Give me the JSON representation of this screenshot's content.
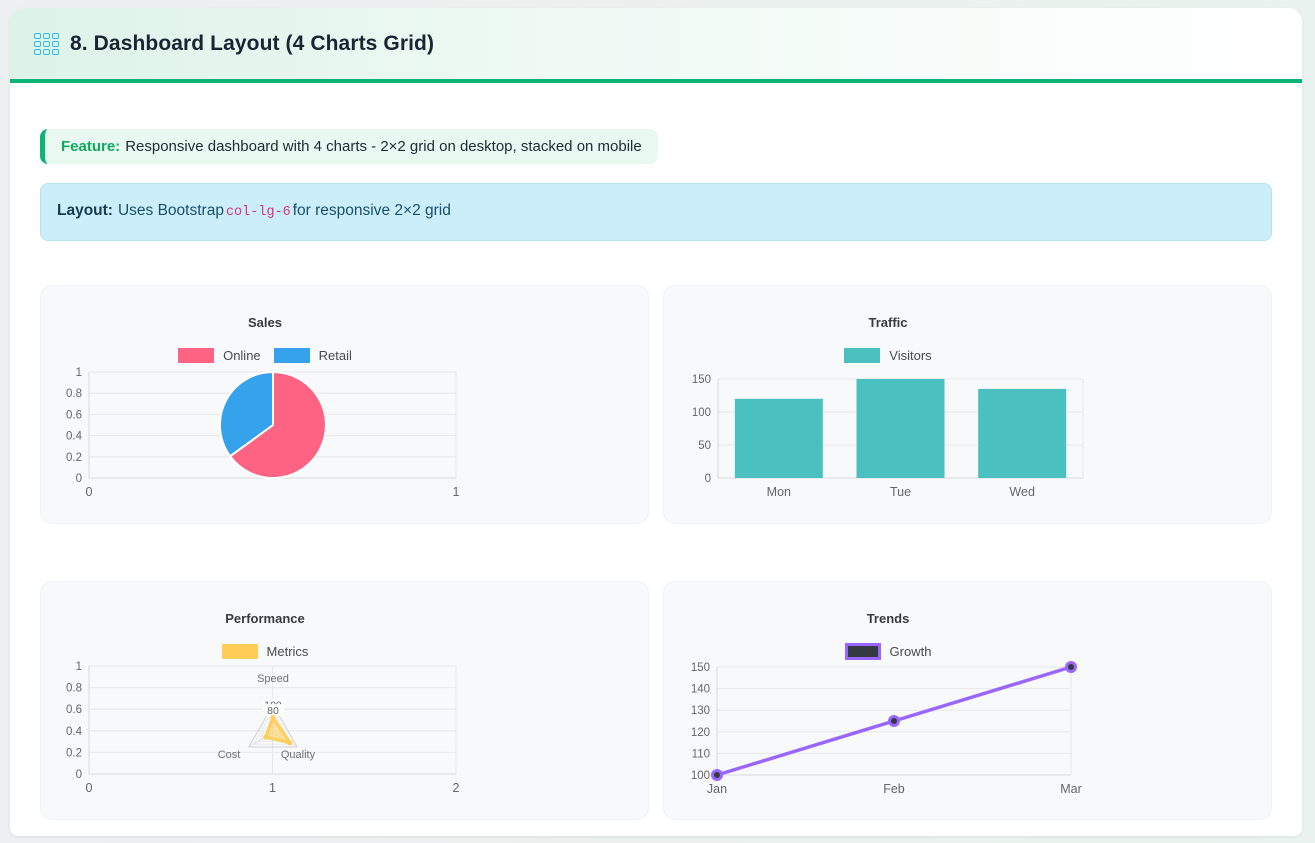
{
  "header": {
    "title": "8. Dashboard Layout (4 Charts Grid)",
    "icon": "dashboard-grid-icon"
  },
  "feature": {
    "label": "Feature:",
    "text": "Responsive dashboard with 4 charts - 2×2 grid on desktop, stacked on mobile"
  },
  "layout_note": {
    "label": "Layout:",
    "text_before": "Uses Bootstrap",
    "code": "col-lg-6",
    "text_after": "for responsive 2×2 grid"
  },
  "colors": {
    "accent_green": "#0db478",
    "icon_cyan": "#2db8e8",
    "info_bg": "#cbeefa",
    "code_pink": "#d63384",
    "pie_pink": "#FF6384",
    "pie_blue": "#36A2EB",
    "bar_teal": "#4BC0C0",
    "radar_yellow": "#FFCE56",
    "line_purple": "#9966FF"
  },
  "chart_data": [
    {
      "id": "sales",
      "type": "pie",
      "title": "Sales",
      "legend": [
        {
          "label": "Online",
          "color": "#FF6384"
        },
        {
          "label": "Retail",
          "color": "#36A2EB"
        }
      ],
      "slices": [
        {
          "label": "Online",
          "value": 65,
          "color": "#FF6384"
        },
        {
          "label": "Retail",
          "value": 35,
          "color": "#36A2EB"
        }
      ],
      "y_ticks": [
        "1",
        "0.8",
        "0.6",
        "0.4",
        "0.2",
        "0"
      ],
      "x_ticks": [
        "0",
        "1"
      ],
      "ylim": [
        0,
        1
      ],
      "legend_position": "top",
      "grid": true
    },
    {
      "id": "traffic",
      "type": "bar",
      "title": "Traffic",
      "legend": [
        {
          "label": "Visitors",
          "color": "#4BC0C0"
        }
      ],
      "categories": [
        "Mon",
        "Tue",
        "Wed"
      ],
      "values": [
        120,
        150,
        135
      ],
      "y_ticks": [
        "150",
        "100",
        "50",
        "0"
      ],
      "ylim": [
        0,
        150
      ],
      "legend_position": "top",
      "grid": true
    },
    {
      "id": "performance",
      "type": "radar",
      "title": "Performance",
      "legend": [
        {
          "label": "Metrics",
          "color": "#FFCE56"
        }
      ],
      "axes": [
        "Speed",
        "Cost",
        "Quality"
      ],
      "values": [
        55,
        30,
        70
      ],
      "scale_max": 100,
      "ring_tick_labels": [
        "100",
        "80"
      ],
      "ring_tick_values": [
        100,
        80
      ],
      "y_ticks": [
        "1",
        "0.8",
        "0.6",
        "0.4",
        "0.2",
        "0"
      ],
      "x_ticks": [
        "0",
        "1",
        "2"
      ],
      "ylim": [
        0,
        1
      ],
      "legend_position": "top",
      "grid": true
    },
    {
      "id": "trends",
      "type": "line",
      "title": "Trends",
      "legend": [
        {
          "label": "Growth",
          "color": "#343a40",
          "border": "#9966FF"
        }
      ],
      "categories": [
        "Jan",
        "Feb",
        "Mar"
      ],
      "values": [
        100,
        125,
        150
      ],
      "y_ticks": [
        "150",
        "140",
        "130",
        "120",
        "110",
        "100"
      ],
      "ylim": [
        100,
        150
      ],
      "line_color": "#9966FF",
      "point_fill": "#343a40",
      "legend_position": "top",
      "grid": true
    }
  ]
}
